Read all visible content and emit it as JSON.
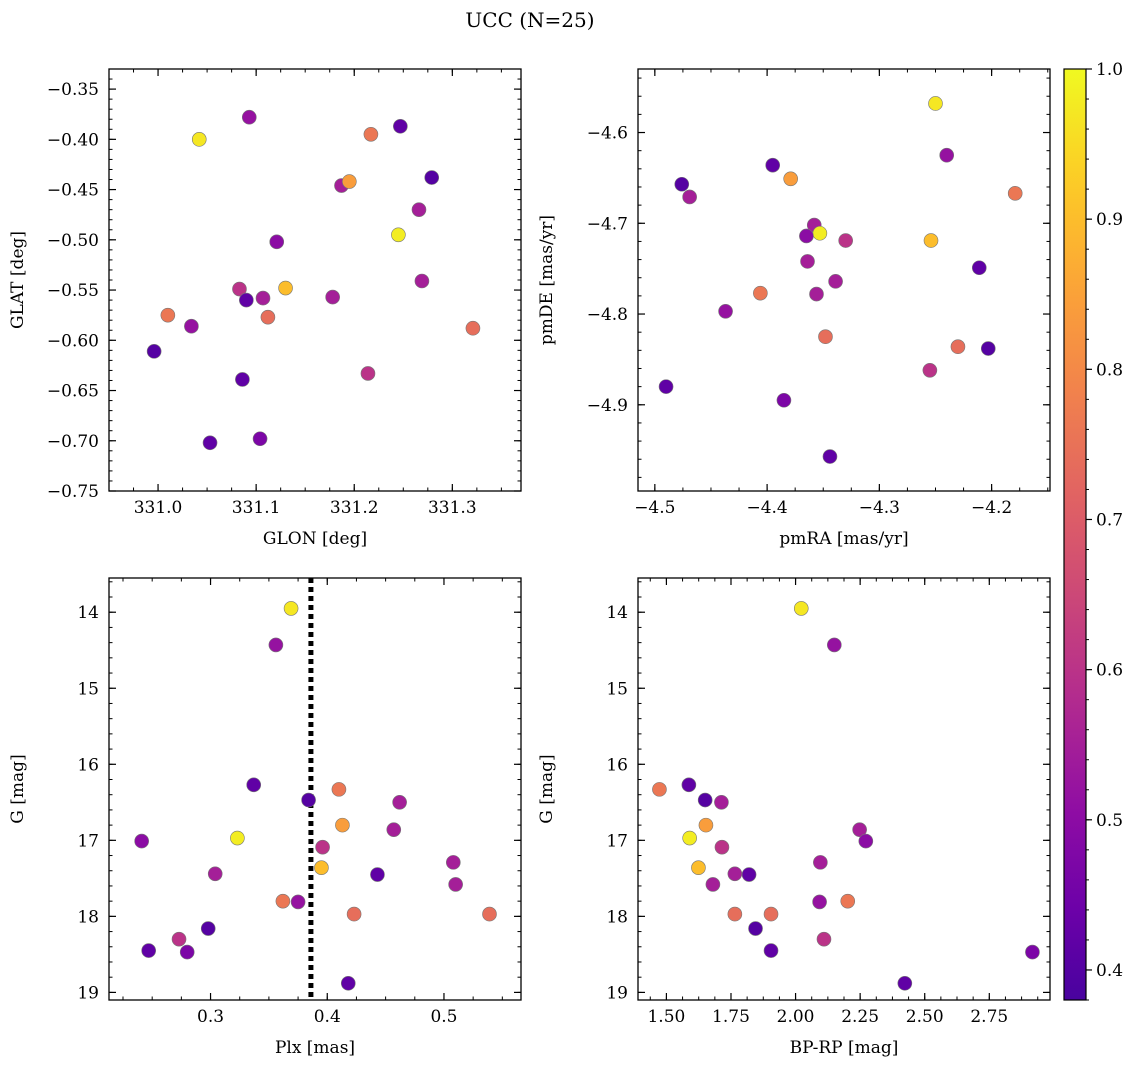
{
  "figure": {
    "title": "UCC (N=25)"
  },
  "colorbar": {
    "min": 0.38,
    "max": 1.0,
    "ticks": [
      0.4,
      0.5,
      0.6,
      0.7,
      0.8,
      0.9,
      1.0
    ],
    "tick_labels": [
      "0.4",
      "0.5",
      "0.6",
      "0.7",
      "0.8",
      "0.9",
      "1.0"
    ],
    "colormap": "plasma"
  },
  "chart_data": [
    {
      "type": "scatter",
      "xlabel": "GLON [deg]",
      "ylabel": "GLAT [deg]",
      "xlim": [
        330.95,
        331.37
      ],
      "ylim": [
        -0.75,
        -0.33
      ],
      "y_inverted": false,
      "xticks": [
        331.0,
        331.1,
        331.2,
        331.3
      ],
      "xtick_labels": [
        "331.0",
        "331.1",
        "331.2",
        "331.3"
      ],
      "yticks": [
        -0.75,
        -0.7,
        -0.65,
        -0.6,
        -0.55,
        -0.5,
        -0.45,
        -0.4,
        -0.35
      ],
      "ytick_labels": [
        "−0.75",
        "−0.70",
        "−0.65",
        "−0.60",
        "−0.55",
        "−0.50",
        "−0.45",
        "−0.40",
        "−0.35"
      ],
      "x": [
        331.042,
        331.093,
        331.247,
        331.217,
        331.279,
        331.187,
        331.195,
        331.266,
        331.245,
        331.121,
        331.083,
        331.13,
        331.269,
        331.09,
        331.107,
        331.178,
        331.01,
        331.034,
        331.112,
        331.321,
        330.996,
        331.214,
        331.086,
        331.104,
        331.053
      ],
      "y": [
        -0.4,
        -0.378,
        -0.387,
        -0.395,
        -0.438,
        -0.446,
        -0.442,
        -0.47,
        -0.495,
        -0.502,
        -0.549,
        -0.548,
        -0.541,
        -0.56,
        -0.558,
        -0.557,
        -0.575,
        -0.586,
        -0.577,
        -0.588,
        -0.611,
        -0.633,
        -0.639,
        -0.698,
        -0.702
      ]
    },
    {
      "type": "scatter",
      "xlabel": "pmRA [mas/yr]",
      "ylabel": "pmDE [mas/yr]",
      "xlim": [
        -4.515,
        -4.148
      ],
      "ylim": [
        -4.995,
        -4.53
      ],
      "y_inverted": false,
      "xticks": [
        -4.5,
        -4.4,
        -4.3,
        -4.2
      ],
      "xtick_labels": [
        "−4.5",
        "−4.4",
        "−4.3",
        "−4.2"
      ],
      "yticks": [
        -4.9,
        -4.8,
        -4.7,
        -4.6
      ],
      "ytick_labels": [
        "−4.9",
        "−4.8",
        "−4.7",
        "−4.6"
      ],
      "x": [
        -4.25,
        -4.24,
        -4.395,
        -4.179,
        -4.476,
        -4.469,
        -4.379,
        -4.358,
        -4.353,
        -4.365,
        -4.33,
        -4.254,
        -4.364,
        -4.211,
        -4.356,
        -4.339,
        -4.406,
        -4.437,
        -4.348,
        -4.23,
        -4.203,
        -4.255,
        -4.49,
        -4.385,
        -4.344
      ],
      "y": [
        -4.568,
        -4.625,
        -4.636,
        -4.667,
        -4.657,
        -4.671,
        -4.651,
        -4.702,
        -4.711,
        -4.714,
        -4.719,
        -4.719,
        -4.742,
        -4.749,
        -4.778,
        -4.764,
        -4.777,
        -4.797,
        -4.825,
        -4.836,
        -4.838,
        -4.862,
        -4.88,
        -4.895,
        -4.957
      ]
    },
    {
      "type": "scatter",
      "xlabel": "Plx [mas]",
      "ylabel": "G [mag]",
      "xlim": [
        0.213,
        0.566
      ],
      "ylim": [
        19.1,
        13.55
      ],
      "y_inverted": true,
      "xticks": [
        0.3,
        0.4,
        0.5
      ],
      "xtick_labels": [
        "0.3",
        "0.4",
        "0.5"
      ],
      "yticks": [
        14,
        15,
        16,
        17,
        18,
        19
      ],
      "ytick_labels": [
        "14",
        "15",
        "16",
        "17",
        "18",
        "19"
      ],
      "vline_x": 0.386,
      "x": [
        0.369,
        0.356,
        0.337,
        0.41,
        0.384,
        0.462,
        0.413,
        0.457,
        0.323,
        0.241,
        0.396,
        0.395,
        0.508,
        0.443,
        0.304,
        0.51,
        0.362,
        0.375,
        0.539,
        0.423,
        0.298,
        0.273,
        0.247,
        0.28,
        0.418
      ],
      "y": [
        13.95,
        14.43,
        16.27,
        16.33,
        16.47,
        16.5,
        16.8,
        16.86,
        16.97,
        17.01,
        17.09,
        17.36,
        17.29,
        17.45,
        17.44,
        17.58,
        17.8,
        17.81,
        17.97,
        17.97,
        18.16,
        18.3,
        18.45,
        18.47,
        18.88
      ]
    },
    {
      "type": "scatter",
      "xlabel": "BP-RP [mag]",
      "ylabel": "G [mag]",
      "xlim": [
        1.39,
        2.985
      ],
      "ylim": [
        19.1,
        13.55
      ],
      "y_inverted": true,
      "xticks": [
        1.5,
        1.75,
        2.0,
        2.25,
        2.5,
        2.75
      ],
      "xtick_labels": [
        "1.50",
        "1.75",
        "2.00",
        "2.25",
        "2.50",
        "2.75"
      ],
      "yticks": [
        14,
        15,
        16,
        17,
        18,
        19
      ],
      "ytick_labels": [
        "14",
        "15",
        "16",
        "17",
        "18",
        "19"
      ],
      "x": [
        2.022,
        2.15,
        1.587,
        1.473,
        1.65,
        1.713,
        1.653,
        2.248,
        1.59,
        2.272,
        1.715,
        1.624,
        2.096,
        1.82,
        1.765,
        1.68,
        2.202,
        2.093,
        1.765,
        1.905,
        1.845,
        2.11,
        1.905,
        2.917,
        2.423
      ],
      "y": [
        13.95,
        14.43,
        16.27,
        16.33,
        16.47,
        16.5,
        16.8,
        16.86,
        16.97,
        17.01,
        17.09,
        17.36,
        17.29,
        17.45,
        17.44,
        17.58,
        17.8,
        17.81,
        17.97,
        17.97,
        18.16,
        18.3,
        18.45,
        18.47,
        18.88
      ]
    }
  ],
  "membership_probability": [
    0.97,
    0.52,
    0.42,
    0.76,
    0.4,
    0.55,
    0.84,
    0.55,
    0.98,
    0.5,
    0.6,
    0.9,
    0.55,
    0.42,
    0.55,
    0.55,
    0.76,
    0.52,
    0.74,
    0.74,
    0.4,
    0.6,
    0.42,
    0.47,
    0.42
  ]
}
